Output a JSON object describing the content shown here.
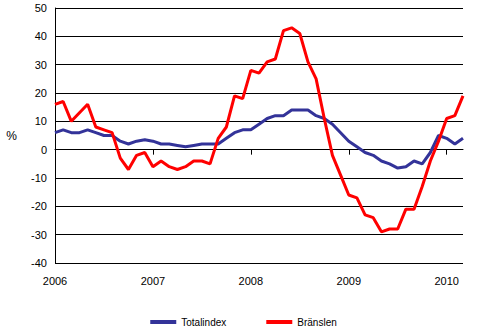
{
  "chart_data": {
    "type": "line",
    "ylabel": "%",
    "categories": [
      "2006",
      null,
      null,
      null,
      null,
      null,
      null,
      null,
      null,
      null,
      null,
      null,
      "2007",
      null,
      null,
      null,
      null,
      null,
      null,
      null,
      null,
      null,
      null,
      null,
      "2008",
      null,
      null,
      null,
      null,
      null,
      null,
      null,
      null,
      null,
      null,
      null,
      "2009",
      null,
      null,
      null,
      null,
      null,
      null,
      null,
      null,
      null,
      null,
      null,
      "2010",
      null,
      null
    ],
    "series": [
      {
        "name": "Totalindex",
        "color": "#333399",
        "values": [
          6,
          7,
          6,
          6,
          7,
          6,
          5,
          5,
          3,
          2,
          3,
          3.5,
          3,
          2,
          2,
          1.5,
          1,
          1.5,
          2,
          2,
          2,
          4,
          6,
          7,
          7,
          9,
          11,
          12,
          12,
          14,
          14,
          14,
          12,
          11,
          9,
          6,
          3,
          1,
          -1,
          -2,
          -4,
          -5,
          -6.5,
          -6,
          -4,
          -5,
          -1,
          5,
          4,
          2,
          4
        ]
      },
      {
        "name": "Bränslen",
        "color": "#ff0000",
        "values": [
          16,
          17,
          10,
          13,
          16,
          8,
          7,
          6,
          -3,
          -7,
          -2,
          -1,
          -6,
          -4,
          -6,
          -7,
          -6,
          -4,
          -4,
          -5,
          4,
          8,
          19,
          18,
          28,
          27,
          31,
          32,
          42,
          43,
          41,
          31,
          25,
          11,
          -2,
          -9,
          -16,
          -17,
          -23,
          -24,
          -29,
          -28,
          -28,
          -21,
          -21,
          -13,
          -4,
          3,
          11,
          12,
          19
        ]
      }
    ],
    "ylim": [
      -40,
      50
    ],
    "yticks": [
      -40,
      -30,
      -20,
      -10,
      0,
      10,
      20,
      30,
      40,
      50
    ],
    "grid": true,
    "legend": "bottom"
  }
}
